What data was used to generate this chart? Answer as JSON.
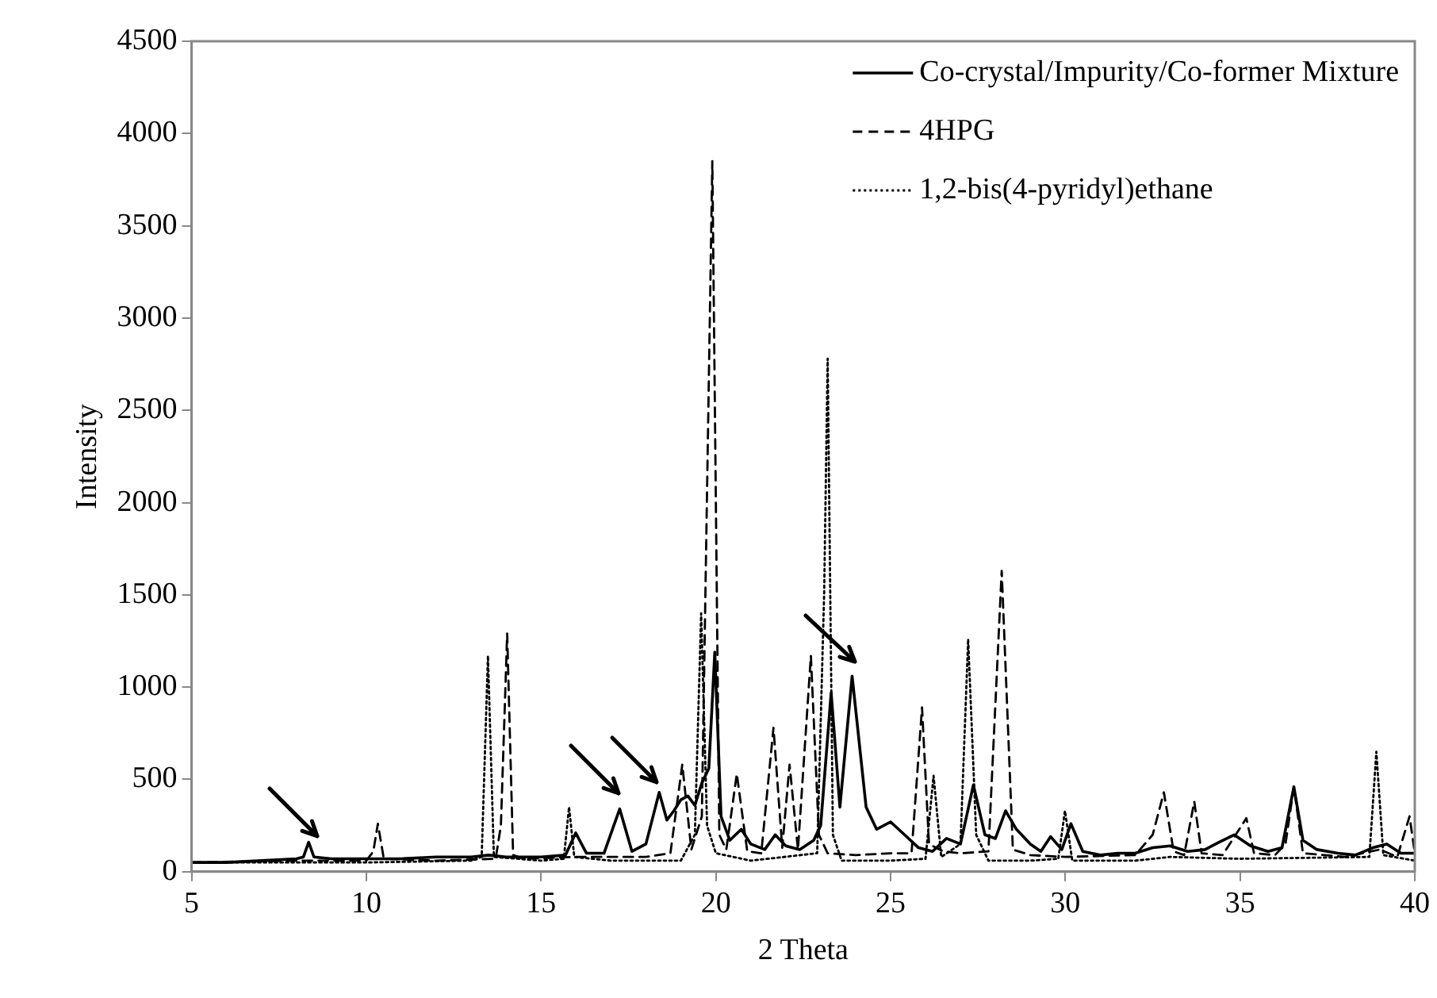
{
  "chart_data": {
    "type": "line",
    "xlabel": "2 Theta",
    "ylabel": "Intensity",
    "xlim": [
      5,
      40
    ],
    "xticks": [
      5,
      10,
      15,
      20,
      25,
      30,
      35,
      40
    ],
    "ylim": [
      0,
      4500
    ],
    "yticks": [
      0,
      500,
      1000,
      1500,
      2000,
      2500,
      3000,
      3500,
      4000,
      4500
    ],
    "grid": false,
    "legend": "top right",
    "marker": "none",
    "series": [
      {
        "name": "Co-crystal/Impurity/Co-former Mixture",
        "color": "#000000",
        "line_style": "solid",
        "x": [
          5,
          6,
          7,
          8,
          8.2,
          8.35,
          8.5,
          9,
          10,
          11,
          12,
          13,
          13.5,
          14,
          15,
          15.7,
          15.99,
          16.3,
          16.8,
          17.25,
          17.6,
          18,
          18.38,
          18.6,
          18.8,
          19,
          19.2,
          19.4,
          19.6,
          19.8,
          19.97,
          20.15,
          20.4,
          20.73,
          21,
          21.4,
          21.7,
          22,
          22.4,
          22.8,
          23,
          23.3,
          23.55,
          23.9,
          24.3,
          24.6,
          25,
          25.4,
          25.8,
          26.2,
          26.6,
          27,
          27.37,
          27.7,
          28,
          28.29,
          28.6,
          29,
          29.3,
          29.58,
          29.9,
          30.16,
          30.5,
          31,
          31.5,
          32,
          32.5,
          33,
          33.5,
          34,
          34.4,
          34.83,
          35.3,
          35.8,
          36.2,
          36.54,
          36.8,
          37.2,
          37.8,
          38.3,
          38.8,
          39.2,
          39.6,
          40
        ],
        "values": [
          50,
          50,
          60,
          70,
          80,
          160,
          80,
          70,
          70,
          70,
          80,
          80,
          90,
          80,
          80,
          90,
          210,
          100,
          100,
          340,
          110,
          150,
          430,
          280,
          330,
          390,
          410,
          360,
          480,
          560,
          1190,
          300,
          170,
          230,
          150,
          120,
          200,
          140,
          120,
          170,
          250,
          970,
          350,
          1060,
          350,
          230,
          270,
          200,
          130,
          110,
          180,
          150,
          470,
          200,
          180,
          330,
          230,
          150,
          110,
          190,
          120,
          260,
          110,
          90,
          100,
          100,
          130,
          140,
          110,
          120,
          160,
          200,
          140,
          110,
          130,
          460,
          170,
          120,
          100,
          90,
          130,
          150,
          100,
          100
        ]
      },
      {
        "name": "4HPG",
        "color": "#000000",
        "line_style": "dashed",
        "x": [
          5,
          8,
          10,
          10.2,
          10.33,
          10.5,
          12,
          13.7,
          13.85,
          14.03,
          14.2,
          14.5,
          16,
          18,
          18.7,
          19.04,
          19.3,
          19.6,
          19.9,
          20.1,
          20.3,
          20.6,
          20.9,
          21.3,
          21.65,
          21.9,
          22.11,
          22.35,
          22.72,
          22.95,
          23.2,
          24,
          25,
          25.6,
          25.9,
          26.1,
          26.5,
          27,
          27.8,
          28.18,
          28.5,
          29,
          30,
          32,
          32.5,
          32.82,
          33.1,
          33.4,
          33.69,
          33.9,
          34.5,
          35.18,
          35.4,
          36,
          36.3,
          36.54,
          36.8,
          38,
          39,
          39.5,
          39.85,
          40
        ],
        "values": [
          50,
          60,
          60,
          110,
          260,
          70,
          60,
          70,
          250,
          1290,
          90,
          70,
          80,
          80,
          100,
          580,
          120,
          300,
          3850,
          200,
          120,
          530,
          110,
          100,
          780,
          130,
          580,
          120,
          1170,
          200,
          100,
          90,
          100,
          100,
          890,
          150,
          110,
          100,
          110,
          1630,
          120,
          90,
          80,
          90,
          200,
          430,
          110,
          90,
          380,
          100,
          90,
          290,
          100,
          90,
          150,
          460,
          100,
          80,
          120,
          80,
          300,
          100
        ]
      },
      {
        "name": "1,2-bis(4-pyridyl)ethane",
        "color": "#000000",
        "line_style": "dotted",
        "x": [
          5,
          10,
          13,
          13.3,
          13.48,
          13.65,
          15,
          15.65,
          15.8,
          15.95,
          17,
          19,
          19.4,
          19.58,
          19.75,
          20,
          21,
          22.9,
          23.1,
          23.2,
          23.35,
          23.6,
          25,
          26,
          26.23,
          26.45,
          27,
          27.22,
          27.45,
          27.8,
          29,
          29.8,
          29.99,
          30.2,
          32,
          33,
          35,
          38.7,
          38.9,
          39.1,
          40
        ],
        "values": [
          50,
          50,
          60,
          80,
          1170,
          80,
          60,
          70,
          350,
          80,
          60,
          60,
          200,
          1400,
          250,
          100,
          60,
          100,
          1510,
          2780,
          200,
          60,
          60,
          70,
          520,
          80,
          150,
          1260,
          200,
          60,
          60,
          70,
          330,
          60,
          60,
          80,
          70,
          80,
          650,
          90,
          60
        ]
      }
    ]
  }
}
